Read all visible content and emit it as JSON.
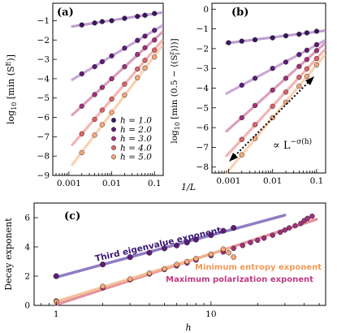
{
  "colors": {
    "h1": "#3b1660",
    "h2": "#5e1d79",
    "h3": "#a1307a",
    "h4": "#e26169",
    "h5": "#f9a878",
    "fit_lines": [
      "#b28fc6",
      "#c09ad0",
      "#d58fb2",
      "#f1a7a6",
      "#fac9a8"
    ],
    "line_c_third": "#7d66b8",
    "line_c_maxpol": "#e07d8f",
    "line_c_minent": "#f5b78e",
    "ann_third": "#3a1774",
    "ann_minent": "#f39a57",
    "ann_maxpol": "#c13a82"
  },
  "chart_data": [
    {
      "type": "scatter",
      "panel": "(a)",
      "ylabel": "log10[min(S^E)]",
      "xscale": "log",
      "xlim": [
        0.00042,
        0.16
      ],
      "ylim": [
        -9,
        -0.1
      ],
      "xticks": [
        0.001,
        0.01,
        0.1
      ],
      "xticklabels": [
        "0.001",
        "0.01",
        "0.1"
      ],
      "yticks": [
        -9,
        -8,
        -7,
        -6,
        -5,
        -4,
        -3,
        -2,
        -1
      ],
      "yticklabels": [
        "−9",
        "−8",
        "−7",
        "−6",
        "−5",
        "−4",
        "−3",
        "−2",
        "−1"
      ],
      "legend": [
        "h = 1.0",
        "h = 2.0",
        "h = 3.0",
        "h = 4.0",
        "h = 5.0"
      ],
      "legend_position": "lower-right",
      "series": [
        {
          "name": "h = 1.0",
          "x": [
            0.002,
            0.004,
            0.006,
            0.01,
            0.02,
            0.04,
            0.06,
            0.1
          ],
          "y": [
            -1.22,
            -1.12,
            -1.05,
            -1.0,
            -0.88,
            -0.78,
            -0.72,
            -0.63
          ]
        },
        {
          "name": "h = 2.0",
          "x": [
            0.002,
            0.004,
            0.006,
            0.01,
            0.02,
            0.04,
            0.06,
            0.1
          ],
          "y": [
            -3.75,
            -3.38,
            -3.12,
            -2.82,
            -2.42,
            -2.02,
            -1.8,
            -1.5
          ]
        },
        {
          "name": "h = 3.0",
          "x": [
            0.002,
            0.004,
            0.006,
            0.01,
            0.02,
            0.04,
            0.06,
            0.1
          ],
          "y": [
            -5.42,
            -4.82,
            -4.45,
            -4.0,
            -3.38,
            -2.75,
            -2.4,
            -2.0
          ]
        },
        {
          "name": "h = 4.0",
          "x": [
            0.002,
            0.004,
            0.006,
            0.01,
            0.02,
            0.04,
            0.06,
            0.1
          ],
          "y": [
            -6.85,
            -6.1,
            -5.62,
            -5.05,
            -4.28,
            -3.5,
            -3.05,
            -2.52
          ]
        },
        {
          "name": "h = 5.0",
          "x": [
            0.002,
            0.004,
            0.006,
            0.01,
            0.02,
            0.04,
            0.06,
            0.1
          ],
          "y": [
            -7.82,
            -6.92,
            -6.38,
            -5.75,
            -4.85,
            -3.95,
            -3.45,
            -2.88
          ]
        }
      ]
    },
    {
      "type": "scatter",
      "panel": "(b)",
      "ylabel": "log10[min(0.5 − ⟨(S_i^z)⟩)]",
      "xscale": "log",
      "xlim": [
        0.00042,
        0.16
      ],
      "ylim": [
        -8.3,
        0.3
      ],
      "xticks": [
        0.001,
        0.01,
        0.1
      ],
      "xticklabels": [
        "0.001",
        "0.01",
        "0.1"
      ],
      "yticks": [
        -8,
        -7,
        -6,
        -5,
        -4,
        -3,
        -2,
        -1,
        0
      ],
      "yticklabels": [
        "−8",
        "−7",
        "−6",
        "−5",
        "−4",
        "−3",
        "−2",
        "−1",
        "0"
      ],
      "annotation": "∝ L^−σ(h)",
      "series": [
        {
          "name": "h = 1.0",
          "x": [
            0.001,
            0.002,
            0.004,
            0.01,
            0.02,
            0.04,
            0.06,
            0.1
          ],
          "y": [
            -1.7,
            -1.62,
            -1.55,
            -1.45,
            -1.35,
            -1.27,
            -1.2,
            -1.12
          ]
        },
        {
          "name": "h = 2.0",
          "x": [
            0.002,
            0.004,
            0.01,
            0.02,
            0.04,
            0.06,
            0.1
          ],
          "y": [
            -3.85,
            -3.5,
            -3.0,
            -2.68,
            -2.3,
            -2.08,
            -1.8
          ]
        },
        {
          "name": "h = 3.0",
          "x": [
            0.002,
            0.004,
            0.01,
            0.02,
            0.04,
            0.06,
            0.1
          ],
          "y": [
            -5.5,
            -4.88,
            -4.1,
            -3.5,
            -2.9,
            -2.55,
            -2.1
          ]
        },
        {
          "name": "h = 4.0",
          "x": [
            0.002,
            0.004,
            0.01,
            0.02,
            0.04,
            0.06,
            0.1
          ],
          "y": [
            -6.6,
            -5.85,
            -4.92,
            -4.2,
            -3.45,
            -3.02,
            -2.5
          ]
        },
        {
          "name": "h = 5.0",
          "x": [
            0.002,
            0.004,
            0.01,
            0.02,
            0.04,
            0.06,
            0.1
          ],
          "y": [
            -7.38,
            -6.55,
            -5.5,
            -4.72,
            -3.9,
            -3.4,
            -2.82
          ]
        }
      ]
    },
    {
      "type": "scatter",
      "panel": "(c)",
      "xlabel": "h",
      "ylabel": "Decay exponent",
      "xscale": "log",
      "xlim": [
        0.72,
        55
      ],
      "ylim": [
        0,
        7
      ],
      "xticks": [
        1,
        10
      ],
      "xticklabels": [
        "1",
        "10"
      ],
      "yticks": [
        0,
        2,
        4,
        6
      ],
      "yticklabels": [
        "0",
        "2",
        "4",
        "6"
      ],
      "annotations": [
        "Third eigenvalue exponent",
        "Minimum entropy exponent",
        "Maximum polarization exponent"
      ],
      "series": [
        {
          "name": "Third eigenvalue exponent",
          "x": [
            1,
            2,
            3,
            4,
            5,
            6,
            7,
            8,
            10,
            12,
            14
          ],
          "y": [
            2.0,
            2.8,
            3.3,
            3.6,
            3.9,
            4.1,
            4.3,
            4.5,
            4.8,
            5.1,
            5.3
          ]
        },
        {
          "name": "Maximum polarization exponent",
          "x": [
            1,
            2,
            3,
            4,
            5,
            6,
            7,
            8,
            10,
            12,
            14,
            16,
            18,
            20,
            22,
            25,
            28,
            30,
            32,
            35,
            38,
            40,
            42,
            45
          ],
          "y": [
            0.3,
            1.2,
            1.75,
            2.15,
            2.45,
            2.7,
            2.9,
            3.1,
            3.4,
            3.65,
            3.9,
            4.1,
            4.3,
            4.45,
            4.6,
            4.8,
            5.0,
            5.15,
            5.3,
            5.45,
            5.6,
            5.8,
            5.95,
            6.1
          ]
        },
        {
          "name": "Minimum entropy exponent",
          "x": [
            1,
            2,
            3,
            4,
            5,
            6,
            7,
            8,
            10,
            12,
            13,
            14
          ],
          "y": [
            0.25,
            1.3,
            1.8,
            2.2,
            2.5,
            2.8,
            3.0,
            3.2,
            3.5,
            3.85,
            3.6,
            3.3
          ]
        }
      ]
    }
  ],
  "axis_labels": {
    "a_x_shared": "1/L",
    "c_x": "h"
  }
}
